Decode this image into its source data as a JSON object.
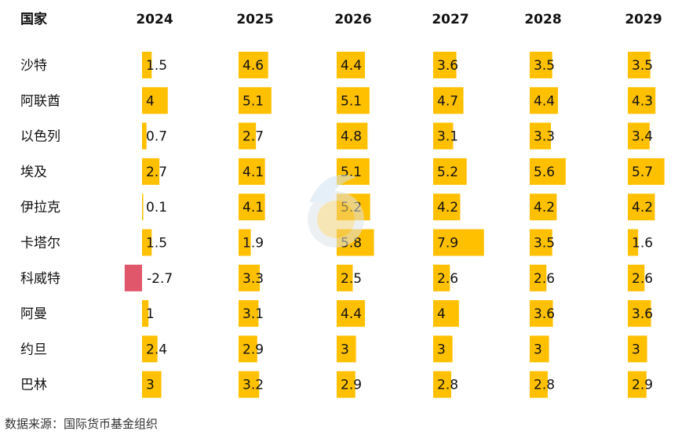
{
  "chart_data": {
    "type": "table",
    "row_header": "国家",
    "years": [
      "2024",
      "2025",
      "2026",
      "2027",
      "2028",
      "2029"
    ],
    "countries": [
      "沙特",
      "阿联酋",
      "以色列",
      "埃及",
      "伊拉克",
      "卡塔尔",
      "科威特",
      "阿曼",
      "约旦",
      "巴林"
    ],
    "series": [
      {
        "name": "2024",
        "values": [
          1.5,
          4,
          0.7,
          2.7,
          0.1,
          1.5,
          -2.7,
          1,
          2.4,
          3
        ]
      },
      {
        "name": "2025",
        "values": [
          4.6,
          5.1,
          2.7,
          4.1,
          4.1,
          1.9,
          3.3,
          3.1,
          2.9,
          3.2
        ]
      },
      {
        "name": "2026",
        "values": [
          4.4,
          5.1,
          4.8,
          5.1,
          5.2,
          5.8,
          2.5,
          4.4,
          3,
          2.9
        ]
      },
      {
        "name": "2027",
        "values": [
          3.6,
          4.7,
          3.1,
          5.2,
          4.2,
          7.9,
          2.6,
          4,
          3,
          2.8
        ]
      },
      {
        "name": "2028",
        "values": [
          3.5,
          4.4,
          3.3,
          5.6,
          4.2,
          3.5,
          2.6,
          3.6,
          3,
          2.8
        ]
      },
      {
        "name": "2029",
        "values": [
          3.5,
          4.3,
          3.4,
          5.7,
          4.2,
          1.6,
          2.6,
          3.6,
          3,
          2.9
        ]
      }
    ],
    "colors": {
      "positive": "#FFC000",
      "negative": "#E0566A"
    }
  },
  "source_text": "数据来源：国际货币基金组织"
}
